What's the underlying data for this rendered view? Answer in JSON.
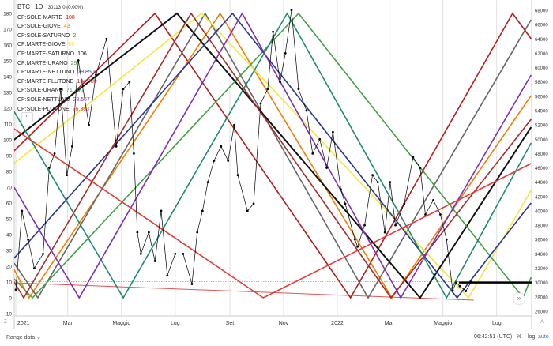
{
  "header": {
    "symbol": "BTC",
    "interval": "1D",
    "price": "30113",
    "change": "0 (0.00%)"
  },
  "legend": [
    {
      "label": "CP:SOLE-MARTE",
      "value": "108",
      "color": "#b71c1c"
    },
    {
      "label": "CP:SOLE-GIOVE",
      "value": "43",
      "color": "#f57c00"
    },
    {
      "label": "CP:SOLE-SATURNO",
      "value": "2",
      "color": "#666666"
    },
    {
      "label": "CP:MARTE-GIOVE",
      "value": "65",
      "color": "#f2e641"
    },
    {
      "label": "CP:MARTE-SATURNO",
      "value": "106",
      "color": "#111111"
    },
    {
      "label": "CP:MARTE-URANO",
      "value": "29",
      "color": "#43a047"
    },
    {
      "label": "CP:MARTE-NETTUNO",
      "value": "79.850",
      "color": "#283593"
    },
    {
      "label": "CP:MARTE-PLUTONE",
      "value": "134.800",
      "color": "#a52a2a"
    },
    {
      "label": "CP:SOLE-URANO",
      "value": "71.700",
      "color": "#1e8a70"
    },
    {
      "label": "CP:SOLE-NETTUNO",
      "value": "28.567",
      "color": "#7b2fbf"
    },
    {
      "label": "CP:SOLE-PLUTONE",
      "value": "26.383",
      "color": "#e53935"
    }
  ],
  "chart_data": {
    "type": "line",
    "x_range": [
      "2020-12-30",
      "2022-08-09"
    ],
    "x_ticks": [
      {
        "date": "2021-01-01",
        "label": "2021"
      },
      {
        "date": "2021-03-01",
        "label": "Mar"
      },
      {
        "date": "2021-05-01",
        "label": "Maggio"
      },
      {
        "date": "2021-07-01",
        "label": "Lug"
      },
      {
        "date": "2021-09-01",
        "label": "Set"
      },
      {
        "date": "2021-11-01",
        "label": "Nov"
      },
      {
        "date": "2022-01-01",
        "label": "2022"
      },
      {
        "date": "2022-03-01",
        "label": "Mar"
      },
      {
        "date": "2022-05-01",
        "label": "Maggio"
      },
      {
        "date": "2022-07-01",
        "label": "Lug"
      }
    ],
    "left_axis": {
      "range": [
        -10,
        180
      ],
      "ticks": [
        -10,
        0,
        10,
        20,
        30,
        40,
        50,
        60,
        70,
        80,
        90,
        100,
        110,
        120,
        130,
        140,
        150,
        160,
        170,
        180
      ]
    },
    "right_axis": {
      "range": [
        26000,
        68000
      ],
      "ticks": [
        26000,
        28000,
        30000,
        32000,
        34000,
        36000,
        38000,
        40000,
        42000,
        44000,
        46000,
        48000,
        50000,
        52000,
        54000,
        56000,
        58000,
        60000,
        62000,
        64000,
        66000,
        68000
      ]
    },
    "indicators": [
      {
        "legend_index": 0,
        "points": [
          [
            "2020-12-30",
            93
          ],
          [
            "2021-06-08",
            180
          ],
          [
            "2022-01-16",
            0
          ],
          [
            "2022-07-19",
            180
          ],
          [
            "2022-08-09",
            164
          ]
        ]
      },
      {
        "legend_index": 1,
        "points": [
          [
            "2020-12-30",
            18
          ],
          [
            "2021-01-16",
            0
          ],
          [
            "2021-08-21",
            180
          ],
          [
            "2022-03-04",
            0
          ],
          [
            "2022-08-09",
            128
          ]
        ]
      },
      {
        "legend_index": 2,
        "points": [
          [
            "2020-12-30",
            22
          ],
          [
            "2021-01-26",
            0
          ],
          [
            "2021-08-04",
            180
          ],
          [
            "2022-02-05",
            0
          ],
          [
            "2022-08-09",
            176
          ]
        ]
      },
      {
        "legend_index": 3,
        "points": [
          [
            "2020-12-30",
            85
          ],
          [
            "2021-07-31",
            180
          ],
          [
            "2022-05-30",
            0
          ],
          [
            "2022-08-09",
            68
          ]
        ]
      },
      {
        "legend_index": 4,
        "points": [
          [
            "2020-12-30",
            100
          ],
          [
            "2021-07-03",
            180
          ],
          [
            "2022-04-05",
            0
          ],
          [
            "2022-08-09",
            108
          ]
        ]
      },
      {
        "legend_index": 5,
        "points": [
          [
            "2020-12-30",
            12
          ],
          [
            "2021-01-20",
            0
          ],
          [
            "2021-11-18",
            180
          ],
          [
            "2022-07-31",
            0
          ],
          [
            "2022-08-09",
            13
          ]
        ]
      },
      {
        "legend_index": 6,
        "points": [
          [
            "2020-12-30",
            25
          ],
          [
            "2021-09-04",
            180
          ],
          [
            "2022-05-17",
            0
          ],
          [
            "2022-08-09",
            60
          ]
        ]
      },
      {
        "legend_index": 7,
        "points": [
          [
            "2020-12-30",
            10
          ],
          [
            "2021-01-10",
            0
          ],
          [
            "2021-07-19",
            180
          ],
          [
            "2022-03-03",
            0
          ],
          [
            "2022-08-09",
            113
          ]
        ]
      },
      {
        "legend_index": 8,
        "points": [
          [
            "2020-12-30",
            118
          ],
          [
            "2021-05-03",
            0
          ],
          [
            "2021-11-05",
            180
          ],
          [
            "2022-05-05",
            0
          ],
          [
            "2022-08-09",
            98
          ]
        ]
      },
      {
        "legend_index": 9,
        "points": [
          [
            "2020-12-30",
            70
          ],
          [
            "2021-03-14",
            0
          ],
          [
            "2021-09-15",
            180
          ],
          [
            "2022-03-14",
            0
          ],
          [
            "2022-08-09",
            141
          ]
        ]
      },
      {
        "legend_index": 10,
        "points": [
          [
            "2020-12-30",
            107
          ],
          [
            "2021-10-09",
            0
          ],
          [
            "2022-08-09",
            85
          ]
        ]
      }
    ],
    "thin_line": {
      "color": "#e05555",
      "points": [
        [
          "2020-12-30",
          9.5
        ],
        [
          "2022-06-05",
          -1.5
        ]
      ]
    },
    "price_series": {
      "name": "BTC",
      "color": "#000000",
      "points": [
        [
          "2021-01-01",
          29000
        ],
        [
          "2021-01-08",
          40000
        ],
        [
          "2021-01-15",
          36000
        ],
        [
          "2021-01-22",
          32000
        ],
        [
          "2021-02-01",
          34000
        ],
        [
          "2021-02-08",
          46000
        ],
        [
          "2021-02-14",
          48000
        ],
        [
          "2021-02-21",
          57000
        ],
        [
          "2021-02-28",
          45000
        ],
        [
          "2021-03-06",
          49000
        ],
        [
          "2021-03-13",
          61000
        ],
        [
          "2021-03-25",
          52000
        ],
        [
          "2021-04-02",
          59000
        ],
        [
          "2021-04-14",
          64000
        ],
        [
          "2021-04-25",
          49000
        ],
        [
          "2021-05-03",
          57000
        ],
        [
          "2021-05-10",
          58000
        ],
        [
          "2021-05-15",
          48000
        ],
        [
          "2021-05-19",
          37000
        ],
        [
          "2021-05-23",
          34000
        ],
        [
          "2021-06-01",
          37000
        ],
        [
          "2021-06-08",
          33000
        ],
        [
          "2021-06-15",
          40000
        ],
        [
          "2021-06-22",
          31000
        ],
        [
          "2021-07-01",
          34000
        ],
        [
          "2021-07-10",
          34000
        ],
        [
          "2021-07-20",
          29800
        ],
        [
          "2021-07-26",
          37000
        ],
        [
          "2021-08-01",
          40000
        ],
        [
          "2021-08-07",
          44000
        ],
        [
          "2021-08-14",
          47000
        ],
        [
          "2021-08-22",
          49000
        ],
        [
          "2021-08-30",
          47000
        ],
        [
          "2021-09-06",
          52000
        ],
        [
          "2021-09-10",
          45000
        ],
        [
          "2021-09-21",
          40000
        ],
        [
          "2021-09-28",
          41000
        ],
        [
          "2021-10-06",
          55000
        ],
        [
          "2021-10-14",
          57000
        ],
        [
          "2021-10-20",
          65000
        ],
        [
          "2021-10-28",
          58000
        ],
        [
          "2021-11-03",
          62000
        ],
        [
          "2021-11-10",
          68000
        ],
        [
          "2021-11-18",
          57000
        ],
        [
          "2021-11-27",
          54000
        ],
        [
          "2021-12-04",
          48000
        ],
        [
          "2021-12-12",
          50000
        ],
        [
          "2021-12-20",
          46000
        ],
        [
          "2021-12-27",
          51000
        ],
        [
          "2022-01-05",
          43000
        ],
        [
          "2022-01-10",
          41000
        ],
        [
          "2022-01-21",
          36000
        ],
        [
          "2022-01-24",
          35000
        ],
        [
          "2022-02-01",
          38000
        ],
        [
          "2022-02-10",
          45000
        ],
        [
          "2022-02-16",
          44000
        ],
        [
          "2022-02-24",
          37000
        ],
        [
          "2022-03-02",
          44000
        ],
        [
          "2022-03-08",
          38000
        ],
        [
          "2022-03-18",
          41000
        ],
        [
          "2022-03-28",
          47500
        ],
        [
          "2022-04-05",
          46000
        ],
        [
          "2022-04-11",
          39500
        ],
        [
          "2022-04-20",
          41500
        ],
        [
          "2022-04-28",
          39500
        ],
        [
          "2022-05-05",
          36000
        ],
        [
          "2022-05-12",
          28900
        ],
        [
          "2022-05-16",
          30000
        ],
        [
          "2022-05-20",
          29500
        ],
        [
          "2022-05-27",
          28800
        ],
        [
          "2022-06-02",
          30100
        ]
      ]
    },
    "last_price_line": 30113,
    "level_line": {
      "value": 30000,
      "from": "2022-05-19",
      "color": "#000000"
    }
  },
  "toolbar": {
    "range_label": "Range data",
    "time": "06:42:51 (UTC)",
    "percent": "%",
    "log": "log",
    "auto": "auto",
    "goto_label": "»",
    "left_corner": "Z",
    "right_corner": "A",
    "collapse": "^"
  }
}
